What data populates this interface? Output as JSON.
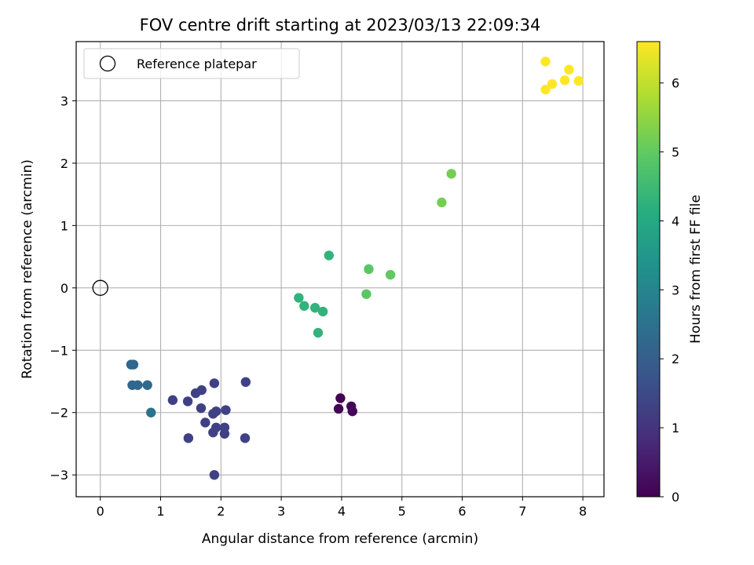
{
  "chart_data": {
    "type": "scatter",
    "title": "FOV centre drift starting at 2023/03/13 22:09:34",
    "xlabel": "Angular distance from reference (arcmin)",
    "ylabel": "Rotation from reference (arcmin)",
    "xlim": [
      -0.4,
      8.35
    ],
    "ylim": [
      -3.35,
      3.95
    ],
    "x_ticks": [
      0,
      1,
      2,
      3,
      4,
      5,
      6,
      7,
      8
    ],
    "y_ticks": [
      -3,
      -2,
      -1,
      0,
      1,
      2,
      3
    ],
    "grid": true,
    "legend": {
      "placement": "upper-left",
      "entries": [
        {
          "label": "Reference platepar",
          "marker": "open-circle",
          "x": 0,
          "y": 0
        }
      ]
    },
    "colorbar": {
      "label": "Hours from first FF file",
      "colormap": "viridis",
      "range": [
        0,
        6.6
      ],
      "ticks": [
        0,
        1,
        2,
        3,
        4,
        5,
        6
      ]
    },
    "colormap_stops": [
      "#440154",
      "#472c7a",
      "#3b518b",
      "#2c718e",
      "#21908d",
      "#27ad81",
      "#5cc863",
      "#aadc32",
      "#fde725"
    ],
    "points": [
      {
        "x": 3.98,
        "y": -1.77,
        "c": 0.0
      },
      {
        "x": 3.95,
        "y": -1.94,
        "c": 0.05
      },
      {
        "x": 4.16,
        "y": -1.9,
        "c": 0.1
      },
      {
        "x": 4.18,
        "y": -1.98,
        "c": 0.12
      },
      {
        "x": 2.41,
        "y": -1.51,
        "c": 1.3
      },
      {
        "x": 1.89,
        "y": -1.53,
        "c": 1.3
      },
      {
        "x": 1.68,
        "y": -1.64,
        "c": 1.3
      },
      {
        "x": 1.58,
        "y": -1.69,
        "c": 1.3
      },
      {
        "x": 1.2,
        "y": -1.8,
        "c": 1.3
      },
      {
        "x": 1.45,
        "y": -1.82,
        "c": 1.3
      },
      {
        "x": 1.67,
        "y": -1.93,
        "c": 1.3
      },
      {
        "x": 2.08,
        "y": -1.96,
        "c": 1.3
      },
      {
        "x": 1.92,
        "y": -1.98,
        "c": 1.3
      },
      {
        "x": 1.87,
        "y": -2.02,
        "c": 1.3
      },
      {
        "x": 1.74,
        "y": -2.16,
        "c": 1.3
      },
      {
        "x": 1.92,
        "y": -2.24,
        "c": 1.3
      },
      {
        "x": 2.06,
        "y": -2.24,
        "c": 1.3
      },
      {
        "x": 1.87,
        "y": -2.32,
        "c": 1.3
      },
      {
        "x": 2.06,
        "y": -2.34,
        "c": 1.3
      },
      {
        "x": 1.46,
        "y": -2.41,
        "c": 1.3
      },
      {
        "x": 2.4,
        "y": -2.41,
        "c": 1.3
      },
      {
        "x": 1.89,
        "y": -3.0,
        "c": 1.3
      },
      {
        "x": 0.51,
        "y": -1.23,
        "c": 2.2
      },
      {
        "x": 0.55,
        "y": -1.23,
        "c": 2.2
      },
      {
        "x": 0.53,
        "y": -1.56,
        "c": 2.2
      },
      {
        "x": 0.62,
        "y": -1.56,
        "c": 2.2
      },
      {
        "x": 0.78,
        "y": -1.56,
        "c": 2.3
      },
      {
        "x": 0.84,
        "y": -2.0,
        "c": 2.5
      },
      {
        "x": 3.79,
        "y": 0.52,
        "c": 4.3
      },
      {
        "x": 3.29,
        "y": -0.16,
        "c": 4.3
      },
      {
        "x": 3.38,
        "y": -0.29,
        "c": 4.3
      },
      {
        "x": 3.56,
        "y": -0.32,
        "c": 4.3
      },
      {
        "x": 3.69,
        "y": -0.38,
        "c": 4.3
      },
      {
        "x": 3.61,
        "y": -0.72,
        "c": 4.3
      },
      {
        "x": 4.45,
        "y": 0.3,
        "c": 4.9
      },
      {
        "x": 4.81,
        "y": 0.21,
        "c": 5.0
      },
      {
        "x": 4.41,
        "y": -0.1,
        "c": 4.9
      },
      {
        "x": 5.66,
        "y": 1.37,
        "c": 5.2
      },
      {
        "x": 5.82,
        "y": 1.83,
        "c": 5.2
      },
      {
        "x": 7.38,
        "y": 3.63,
        "c": 6.6
      },
      {
        "x": 7.77,
        "y": 3.5,
        "c": 6.6
      },
      {
        "x": 7.49,
        "y": 3.27,
        "c": 6.6
      },
      {
        "x": 7.7,
        "y": 3.33,
        "c": 6.6
      },
      {
        "x": 7.93,
        "y": 3.32,
        "c": 6.6
      },
      {
        "x": 7.38,
        "y": 3.18,
        "c": 6.6
      }
    ]
  }
}
